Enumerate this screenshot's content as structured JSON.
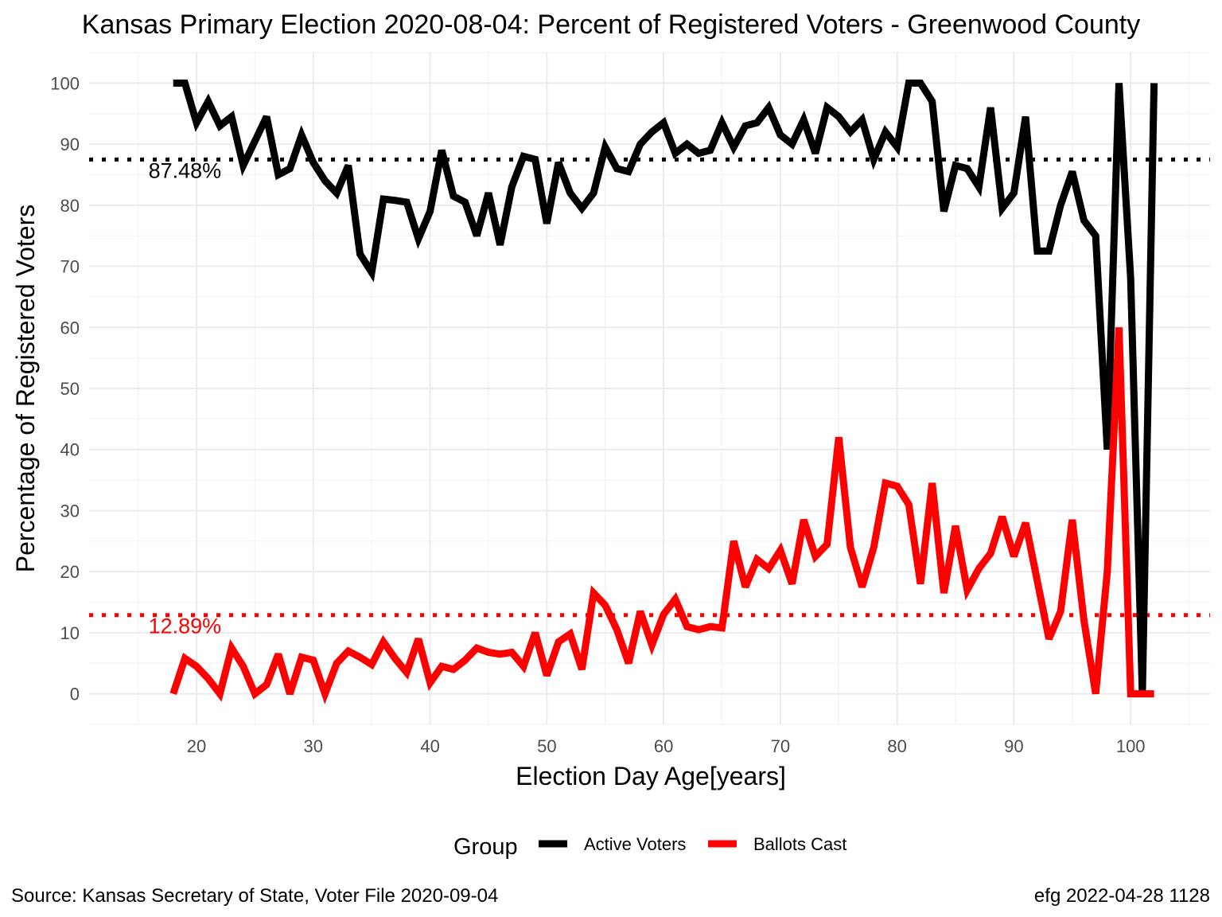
{
  "chart_data": {
    "type": "line",
    "title": "Kansas Primary Election 2020-08-04:  Percent of Registered Voters - Greenwood County",
    "xlabel": "Election Day Age[years]",
    "ylabel": "Percentage of Registered Voters",
    "xlim": [
      10.8,
      106.8
    ],
    "ylim": [
      -5,
      105
    ],
    "x_ticks": [
      20,
      30,
      40,
      50,
      60,
      70,
      80,
      90,
      100
    ],
    "y_ticks": [
      0,
      10,
      20,
      30,
      40,
      50,
      60,
      70,
      80,
      90,
      100
    ],
    "grid": true,
    "legend": {
      "title": "Group",
      "position": "bottom"
    },
    "x": [
      18,
      19,
      20,
      21,
      22,
      23,
      24,
      25,
      26,
      27,
      28,
      29,
      30,
      31,
      32,
      33,
      34,
      35,
      36,
      37,
      38,
      39,
      40,
      41,
      42,
      43,
      44,
      45,
      46,
      47,
      48,
      49,
      50,
      51,
      52,
      53,
      54,
      55,
      56,
      57,
      58,
      59,
      60,
      61,
      62,
      63,
      64,
      65,
      66,
      67,
      68,
      69,
      70,
      71,
      72,
      73,
      74,
      75,
      76,
      77,
      78,
      79,
      80,
      81,
      82,
      83,
      84,
      85,
      86,
      87,
      88,
      89,
      90,
      91,
      92,
      93,
      94,
      95,
      96,
      97,
      98,
      99,
      100,
      101,
      102
    ],
    "series": [
      {
        "name": "Active Voters",
        "color": "#000000",
        "values": [
          100,
          100,
          93.5,
          97,
          93,
          94.5,
          86.5,
          90.5,
          94.5,
          85,
          86,
          91.5,
          87,
          84,
          82,
          86.5,
          72,
          69,
          81,
          80.8,
          80.5,
          74.5,
          79,
          89,
          81.5,
          80.5,
          75,
          82,
          73.5,
          83,
          88,
          87.5,
          77,
          87,
          82,
          79.5,
          82,
          89.5,
          86,
          85.5,
          90,
          92,
          93.5,
          88.5,
          90,
          88.5,
          89,
          93.5,
          89.5,
          93,
          93.5,
          96,
          91.5,
          90,
          94,
          88.5,
          96,
          94.5,
          92,
          94,
          87.5,
          92,
          89.5,
          100,
          100,
          97,
          79,
          86.5,
          86,
          83,
          96,
          79.5,
          82,
          94.5,
          72.5,
          72.5,
          80,
          85.5,
          77.5,
          75,
          40,
          100,
          68,
          0,
          100
        ]
      },
      {
        "name": "Ballots Cast",
        "color": "#ff0000",
        "values": [
          0,
          5.8,
          4.5,
          2.5,
          0,
          7.5,
          4.5,
          0,
          1.5,
          6.5,
          0,
          6,
          5.5,
          0,
          5,
          7,
          6,
          4.8,
          8.5,
          5.8,
          3.5,
          9,
          1.8,
          4.5,
          4,
          5.5,
          7.5,
          6.8,
          6.5,
          6.8,
          4.5,
          10,
          3,
          8.5,
          9.8,
          4,
          16.5,
          14.5,
          10.5,
          5,
          13.5,
          8,
          13,
          15.5,
          11,
          10.5,
          11,
          10.8,
          25,
          17.5,
          22,
          20.5,
          23.5,
          18,
          28.5,
          22.5,
          24.5,
          42,
          24,
          17.5,
          24,
          34.5,
          34,
          31,
          18,
          34.5,
          16.5,
          27.5,
          17,
          20.5,
          23,
          29,
          22.5,
          28,
          18.5,
          9,
          13.5,
          28.5,
          12,
          0,
          20,
          60,
          0,
          0,
          0
        ]
      }
    ],
    "reference_lines": [
      {
        "value": 87.48,
        "label": "87.48%",
        "color": "#000000"
      },
      {
        "value": 12.89,
        "label": "12.89%",
        "color": "#ff0000"
      }
    ]
  },
  "caption": {
    "left": "Source:  Kansas Secretary of State, Voter File  2020-09-04",
    "right": "efg 2022-04-28 1128"
  }
}
